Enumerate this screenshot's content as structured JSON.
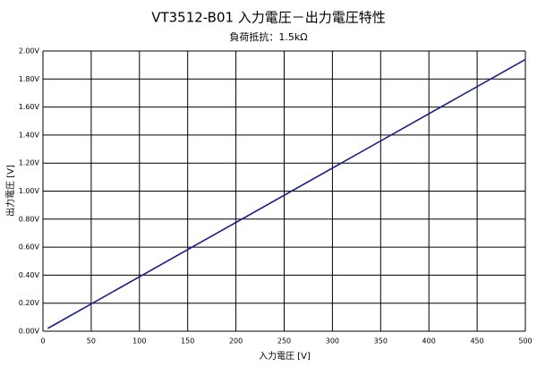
{
  "chart_data": {
    "type": "line",
    "title": "VT3512-B01 入力電圧－出力電圧特性",
    "subtitle": "負荷抵抗：1.5kΩ",
    "x_label": "入力電圧 [V]",
    "y_label": "出力電圧 [V]",
    "x": [
      5,
      500
    ],
    "series": [
      {
        "color": "#1c1c8a",
        "values": [
          0.02,
          1.94
        ]
      }
    ],
    "xlim": [
      0,
      500
    ],
    "xticks": [
      0,
      50,
      100,
      150,
      200,
      250,
      300,
      350,
      400,
      450,
      500
    ],
    "ylim": [
      0,
      2
    ],
    "yticks": [
      {
        "value": 0,
        "label": "0.00V"
      },
      {
        "value": 0.2,
        "label": "0.20V"
      },
      {
        "value": 0.4,
        "label": "0.40V"
      },
      {
        "value": 0.6,
        "label": "0.60V"
      },
      {
        "value": 0.8,
        "label": "0.80V"
      },
      {
        "value": 1.0,
        "label": "1.00V"
      },
      {
        "value": 1.2,
        "label": "1.20V"
      },
      {
        "value": 1.4,
        "label": "1.40V"
      },
      {
        "value": 1.6,
        "label": "1.60V"
      },
      {
        "value": 1.8,
        "label": "1.80V"
      },
      {
        "value": 2.0,
        "label": "2.00V"
      }
    ],
    "grid": true
  }
}
